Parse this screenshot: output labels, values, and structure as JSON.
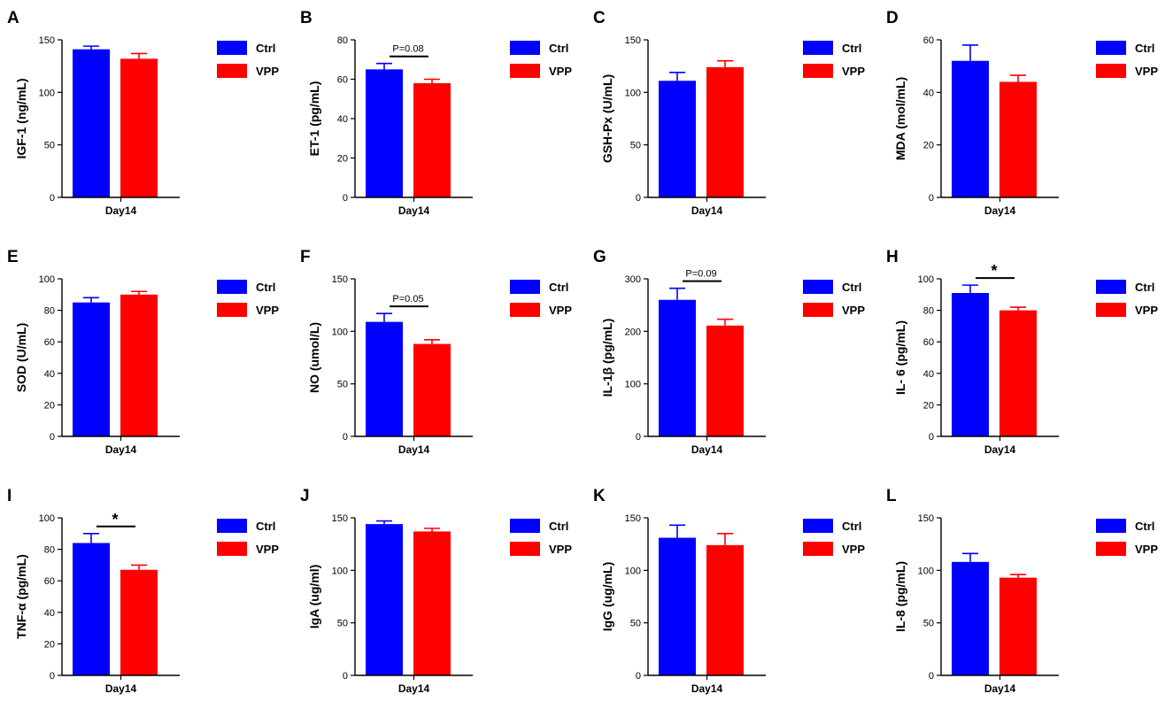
{
  "colors": {
    "ctrl": "#0000ff",
    "vpp": "#ff0000",
    "axis": "#000000"
  },
  "legend_labels": [
    "Ctrl",
    "VPP"
  ],
  "chart_data": [
    {
      "type": "bar",
      "label": "A",
      "ylabel": "IGF-1 (ng/mL)",
      "xlabel": "Day14",
      "categories": [
        "Ctrl",
        "VPP"
      ],
      "values": [
        141,
        132
      ],
      "errors": [
        3,
        5
      ],
      "ylim": [
        0,
        150
      ],
      "yticks": [
        0,
        50,
        100,
        150
      ],
      "annotation": null,
      "legend_position": "right"
    },
    {
      "type": "bar",
      "label": "B",
      "ylabel": "ET-1 (pg/mL)",
      "xlabel": "Day14",
      "categories": [
        "Ctrl",
        "VPP"
      ],
      "values": [
        65,
        58
      ],
      "errors": [
        3,
        2
      ],
      "ylim": [
        0,
        80
      ],
      "yticks": [
        0,
        20,
        40,
        60,
        80
      ],
      "annotation": "P=0.08",
      "legend_position": "right"
    },
    {
      "type": "bar",
      "label": "C",
      "ylabel": "GSH-Px (U/mL)",
      "xlabel": "Day14",
      "categories": [
        "Ctrl",
        "VPP"
      ],
      "values": [
        111,
        124
      ],
      "errors": [
        8,
        6
      ],
      "ylim": [
        0,
        150
      ],
      "yticks": [
        0,
        50,
        100,
        150
      ],
      "annotation": null,
      "legend_position": "right"
    },
    {
      "type": "bar",
      "label": "D",
      "ylabel": "MDA (mol/mL)",
      "xlabel": "Day14",
      "categories": [
        "Ctrl",
        "VPP"
      ],
      "values": [
        52,
        44
      ],
      "errors": [
        6,
        2.5
      ],
      "ylim": [
        0,
        60
      ],
      "yticks": [
        0,
        20,
        40,
        60
      ],
      "annotation": null,
      "legend_position": "right"
    },
    {
      "type": "bar",
      "label": "E",
      "ylabel": "SOD (U/mL)",
      "xlabel": "Day14",
      "categories": [
        "Ctrl",
        "VPP"
      ],
      "values": [
        85,
        90
      ],
      "errors": [
        3,
        2
      ],
      "ylim": [
        0,
        100
      ],
      "yticks": [
        0,
        20,
        40,
        60,
        80,
        100
      ],
      "annotation": null,
      "legend_position": "right"
    },
    {
      "type": "bar",
      "label": "F",
      "ylabel": "NO (umol/L)",
      "xlabel": "Day14",
      "categories": [
        "Ctrl",
        "VPP"
      ],
      "values": [
        109,
        88
      ],
      "errors": [
        8,
        4
      ],
      "ylim": [
        0,
        150
      ],
      "yticks": [
        0,
        50,
        100,
        150
      ],
      "annotation": "P=0.05",
      "legend_position": "right"
    },
    {
      "type": "bar",
      "label": "G",
      "ylabel": "IL-1β (pg/mL)",
      "xlabel": "Day14",
      "categories": [
        "Ctrl",
        "VPP"
      ],
      "values": [
        260,
        211
      ],
      "errors": [
        22,
        12
      ],
      "ylim": [
        0,
        300
      ],
      "yticks": [
        0,
        100,
        200,
        300
      ],
      "annotation": "P=0.09",
      "legend_position": "right"
    },
    {
      "type": "bar",
      "label": "H",
      "ylabel": "IL- 6 (pg/mL)",
      "xlabel": "Day14",
      "categories": [
        "Ctrl",
        "VPP"
      ],
      "values": [
        91,
        80
      ],
      "errors": [
        5,
        2
      ],
      "ylim": [
        0,
        100
      ],
      "yticks": [
        0,
        20,
        40,
        60,
        80,
        100
      ],
      "annotation": "*",
      "legend_position": "right"
    },
    {
      "type": "bar",
      "label": "I",
      "ylabel": "TNF-α (pg/mL)",
      "xlabel": "Day14",
      "categories": [
        "Ctrl",
        "VPP"
      ],
      "values": [
        84,
        67
      ],
      "errors": [
        6,
        3
      ],
      "ylim": [
        0,
        100
      ],
      "yticks": [
        0,
        20,
        40,
        60,
        80,
        100
      ],
      "annotation": "*",
      "legend_position": "right"
    },
    {
      "type": "bar",
      "label": "J",
      "ylabel": "IgA (ug/ml)",
      "xlabel": "Day14",
      "categories": [
        "Ctrl",
        "VPP"
      ],
      "values": [
        144,
        137
      ],
      "errors": [
        3,
        3
      ],
      "ylim": [
        0,
        150
      ],
      "yticks": [
        0,
        50,
        100,
        150
      ],
      "annotation": null,
      "legend_position": "right"
    },
    {
      "type": "bar",
      "label": "K",
      "ylabel": "IgG (ug/mL)",
      "xlabel": "Day14",
      "categories": [
        "Ctrl",
        "VPP"
      ],
      "values": [
        131,
        124
      ],
      "errors": [
        12,
        11
      ],
      "ylim": [
        0,
        150
      ],
      "yticks": [
        0,
        50,
        100,
        150
      ],
      "annotation": null,
      "legend_position": "right"
    },
    {
      "type": "bar",
      "label": "L",
      "ylabel": "IL-8 (pg/mL)",
      "xlabel": "Day14",
      "categories": [
        "Ctrl",
        "VPP"
      ],
      "values": [
        108,
        93
      ],
      "errors": [
        8,
        3
      ],
      "ylim": [
        0,
        150
      ],
      "yticks": [
        0,
        50,
        100,
        150
      ],
      "annotation": null,
      "legend_position": "right"
    }
  ]
}
